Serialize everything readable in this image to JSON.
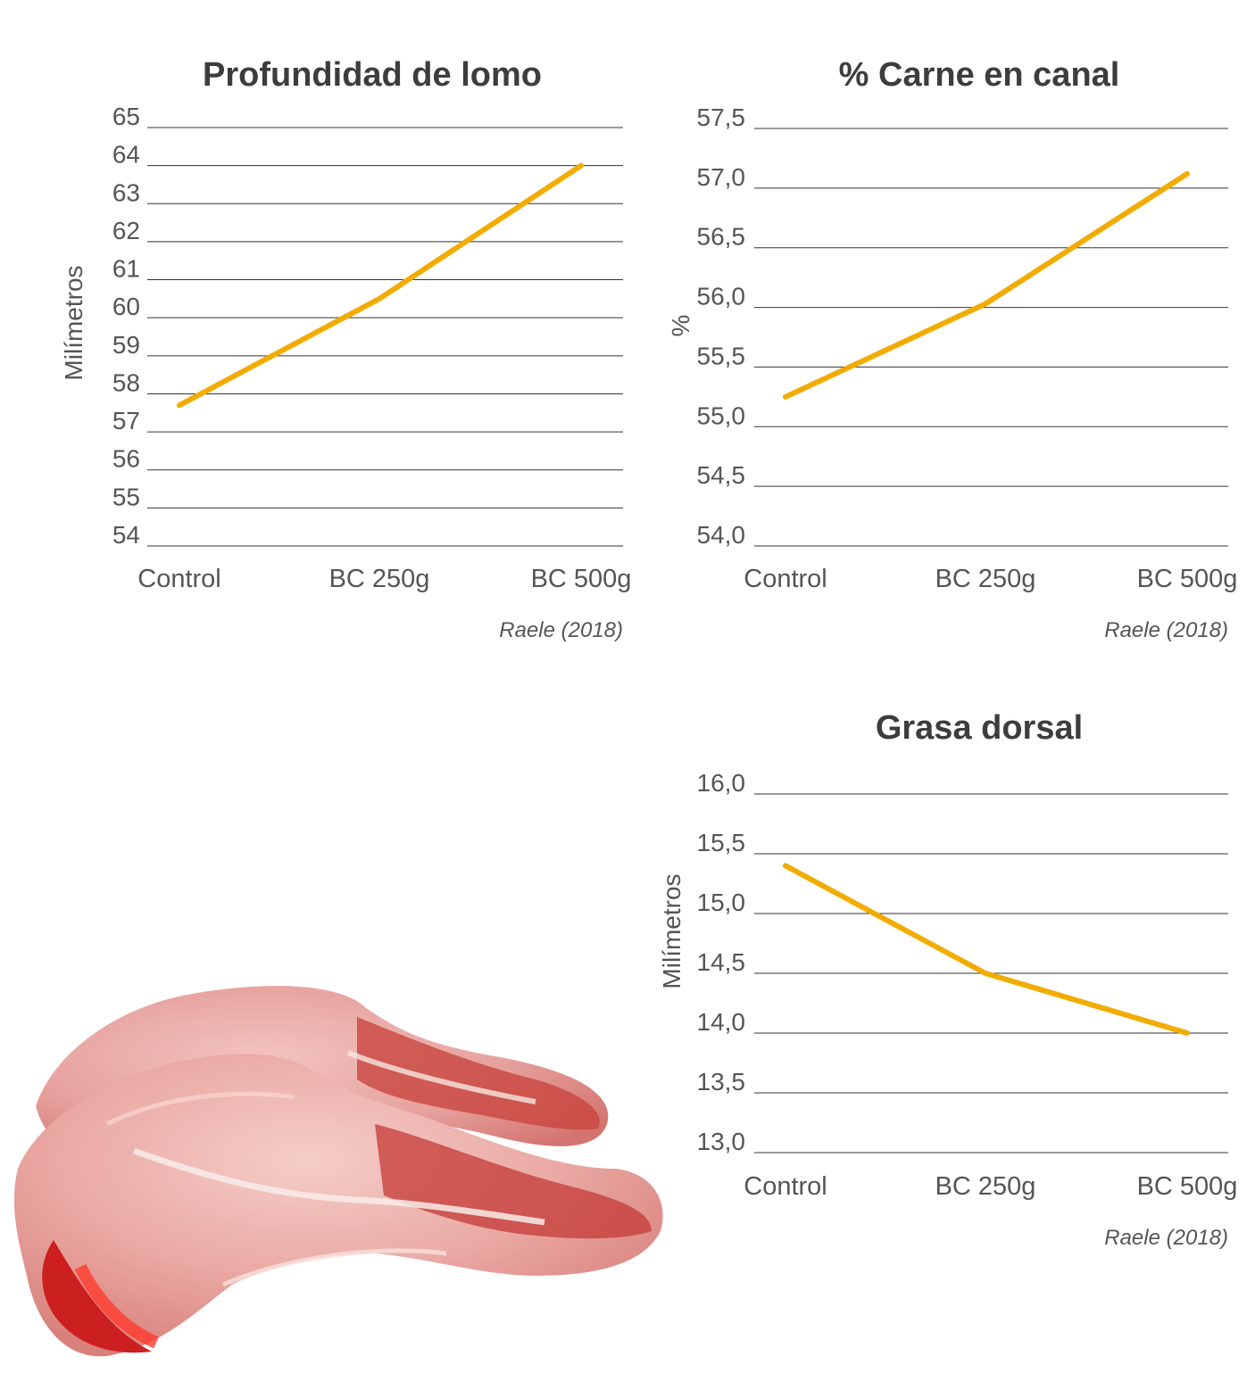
{
  "colors": {
    "series": "#f2ac00",
    "grid": "#333333",
    "text": "#4d4d4d"
  },
  "source_label": "Raele (2018)",
  "image": {
    "icon": "pork-chops-photo"
  },
  "chart_data": [
    {
      "type": "line",
      "title": "Profundidad de lomo",
      "ylabel": "Milímetros",
      "categories": [
        "Control",
        "BC 250g",
        "BC 500g"
      ],
      "series": [
        {
          "values": [
            57.7,
            60.5,
            64.0
          ]
        }
      ],
      "ylim": [
        54,
        65
      ],
      "yticks": [
        "54",
        "55",
        "56",
        "57",
        "58",
        "59",
        "60",
        "61",
        "62",
        "63",
        "64",
        "65"
      ],
      "grid": true,
      "source": "Raele (2018)"
    },
    {
      "type": "line",
      "title": "% Carne en canal",
      "ylabel": "%",
      "categories": [
        "Control",
        "BC 250g",
        "BC 500g"
      ],
      "series": [
        {
          "values": [
            55.25,
            56.03,
            57.12
          ]
        }
      ],
      "ylim": [
        54.0,
        57.5
      ],
      "yticks": [
        "54,0",
        "54,5",
        "55,0",
        "55,5",
        "56,0",
        "56,5",
        "57,0",
        "57,5"
      ],
      "grid": true,
      "source": "Raele (2018)"
    },
    {
      "type": "line",
      "title": "Grasa dorsal",
      "ylabel": "Milímetros",
      "categories": [
        "Control",
        "BC 250g",
        "BC 500g"
      ],
      "series": [
        {
          "values": [
            15.4,
            14.5,
            14.0
          ]
        }
      ],
      "ylim": [
        13.0,
        16.0
      ],
      "yticks": [
        "13,0",
        "13,5",
        "14,0",
        "14,5",
        "15,0",
        "15,5",
        "16,0"
      ],
      "grid": true,
      "source": "Raele (2018)"
    }
  ]
}
